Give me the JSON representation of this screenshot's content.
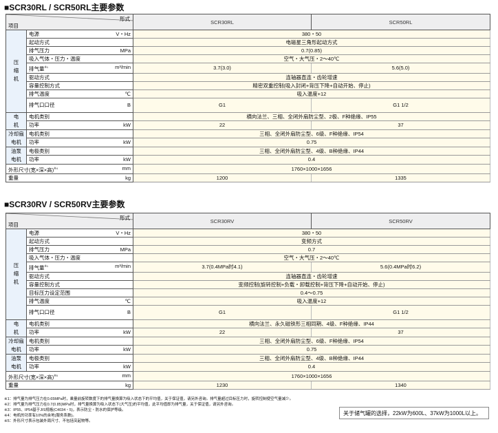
{
  "tables": [
    {
      "title": "■SCR30RL / SCR50RL主要参数",
      "corner_type": "形式",
      "corner_item": "项目",
      "models": [
        "SCR30RL",
        "SCR50RL"
      ],
      "rows": [
        {
          "group": "压\n缩\n机",
          "span": 9,
          "label": "电源",
          "unit": "V・Hz",
          "values": [
            "380・50"
          ]
        },
        {
          "label": "起动方式",
          "unit": "",
          "values": [
            "电磁星三角形起动方式"
          ]
        },
        {
          "label": "排气压力",
          "unit": "MPa",
          "values": [
            "0.7(0.85)"
          ]
        },
        {
          "label": "吸入气体・压力・温度",
          "unit": "",
          "values": [
            "空气・大气压・2～40℃"
          ]
        },
        {
          "label": "排气量",
          "sup": "※1",
          "unit": "m³/min",
          "values": [
            "3.7(3.0)",
            "5.6(5.0)"
          ]
        },
        {
          "label": "驱动方式",
          "unit": "",
          "values": [
            "连轴器直连・齿轮增速"
          ]
        },
        {
          "label": "容量控制方式",
          "unit": "",
          "values": [
            "精密双重控制(吸入封闭+背压下降+自动开始、停止)"
          ]
        },
        {
          "label": "排气温度",
          "unit": "℃",
          "values": [
            "吸入温度+12"
          ]
        },
        {
          "label": "排气口口径",
          "unit": "B",
          "values": [
            "G1",
            "G1 1/2"
          ],
          "tall": true
        },
        {
          "group": "电\n机",
          "span": 2,
          "label": "电机类别",
          "unit": "",
          "values": [
            "横向法兰、三相、全闭外扇防尘型、2极、F种绝缘、IP55"
          ]
        },
        {
          "label": "功率",
          "unit": "kW",
          "values": [
            "22",
            "37"
          ]
        },
        {
          "group": "冷却扇\n电机",
          "span": 2,
          "label": "电机类别",
          "unit": "",
          "values": [
            "三相、全闭外扇防尘型、6级、F种绝缘、IP54"
          ]
        },
        {
          "label": "功率",
          "unit": "kW",
          "values": [
            "0.75"
          ]
        },
        {
          "group": "油泵\n电机",
          "span": 2,
          "label": "电极类别",
          "unit": "",
          "values": [
            "三相、全闭外扇防尘型、4级、B种绝缘、IP44"
          ]
        },
        {
          "label": "功率",
          "unit": "kW",
          "values": [
            "0.4"
          ]
        },
        {
          "full": true,
          "label": "外形尺寸(宽×深×高)",
          "sup": "※4",
          "unit": "mm",
          "values": [
            "1760×1000×1656"
          ]
        },
        {
          "full": true,
          "label": "重量",
          "unit": "kg",
          "values": [
            "1200",
            "1335"
          ]
        }
      ]
    },
    {
      "title": "■SCR30RV / SCR50RV主要参数",
      "corner_type": "形式",
      "corner_item": "项目",
      "models": [
        "SCR30RV",
        "SCR50RV"
      ],
      "rows": [
        {
          "group": "压\n缩\n机",
          "span": 10,
          "label": "电源",
          "unit": "V・Hz",
          "values": [
            "380・50"
          ]
        },
        {
          "label": "起动方式",
          "unit": "",
          "values": [
            "变频方式"
          ]
        },
        {
          "label": "排气压力",
          "unit": "MPa",
          "values": [
            "0.7"
          ]
        },
        {
          "label": "吸入气体・压力・温度",
          "unit": "",
          "values": [
            "空气・大气压・2～40℃"
          ]
        },
        {
          "label": "排气量",
          "sup": "※1",
          "unit": "m³/min",
          "values": [
            "3.7(0.4MPa时4.1)",
            "5.6(0.4MPa时6.2)"
          ]
        },
        {
          "label": "驱动方式",
          "unit": "",
          "values": [
            "连轴器直连・齿轮增速"
          ]
        },
        {
          "label": "容量控制方式",
          "unit": "",
          "values": [
            "变频控制(旋转控制+负载・卸载控制+背压下降+自动开始、停止)"
          ]
        },
        {
          "label": "目标压力设定范围",
          "unit": "",
          "values": [
            "0.4～0.75"
          ]
        },
        {
          "label": "排气温度",
          "unit": "℃",
          "values": [
            "吸入温度+12"
          ]
        },
        {
          "label": "排气口口径",
          "unit": "B",
          "values": [
            "G1",
            "G1 1/2"
          ],
          "tall": true
        },
        {
          "group": "电\n机",
          "span": 2,
          "label": "电机类别",
          "unit": "",
          "values": [
            "横向法兰、永久磁铁形三相同期、4级、F种绝缘、IP44"
          ]
        },
        {
          "label": "功率",
          "unit": "kW",
          "values": [
            "22",
            "37"
          ]
        },
        {
          "group": "冷却扇\n电机",
          "span": 2,
          "label": "电机类别",
          "unit": "",
          "values": [
            "三相、全闭外扇防尘型、6级、F种绝缘、IP54"
          ]
        },
        {
          "label": "功率",
          "unit": "kW",
          "values": [
            "0.75"
          ]
        },
        {
          "group": "油泵\n电机",
          "span": 2,
          "label": "电极类别",
          "unit": "",
          "values": [
            "三相、全闭外扇防尘型、4级、B种绝缘、IP44"
          ]
        },
        {
          "label": "功率",
          "unit": "kW",
          "values": [
            "0.4"
          ]
        },
        {
          "full": true,
          "label": "外形尺寸(宽×深×高)",
          "sup": "※5",
          "unit": "mm",
          "values": [
            "1760×1000×1656"
          ]
        },
        {
          "full": true,
          "label": "重量",
          "unit": "kg",
          "values": [
            "1230",
            "1340"
          ]
        }
      ]
    }
  ],
  "notes": [
    "※1：排气量为排气压力在0.65MPa时，乘量前旋转数度下的排气量换算为吸入状态下的平均值，关于保证值，请另外咨询。排气量超过目标压力时，旋转控制使空气量减少。",
    "※2：排气量为排气压力在0.7(0.85)MPa时，排气量换算为吸入状态下(大气压)的平均值，此平均值即为排气量，关于保证值，请另外咨询。",
    "※3：IP55、IP54基于JIS规格(C4034・5)，表示防尘・防水的保护等级。",
    "※4：电机的功率有10%的余地(服务系数)。",
    "※5：外形尺寸表示包装外周尺寸、不包括突起物等。"
  ],
  "tank_note": "关于储气罐的选择，22kW为600L、37kW为1000L以上。"
}
